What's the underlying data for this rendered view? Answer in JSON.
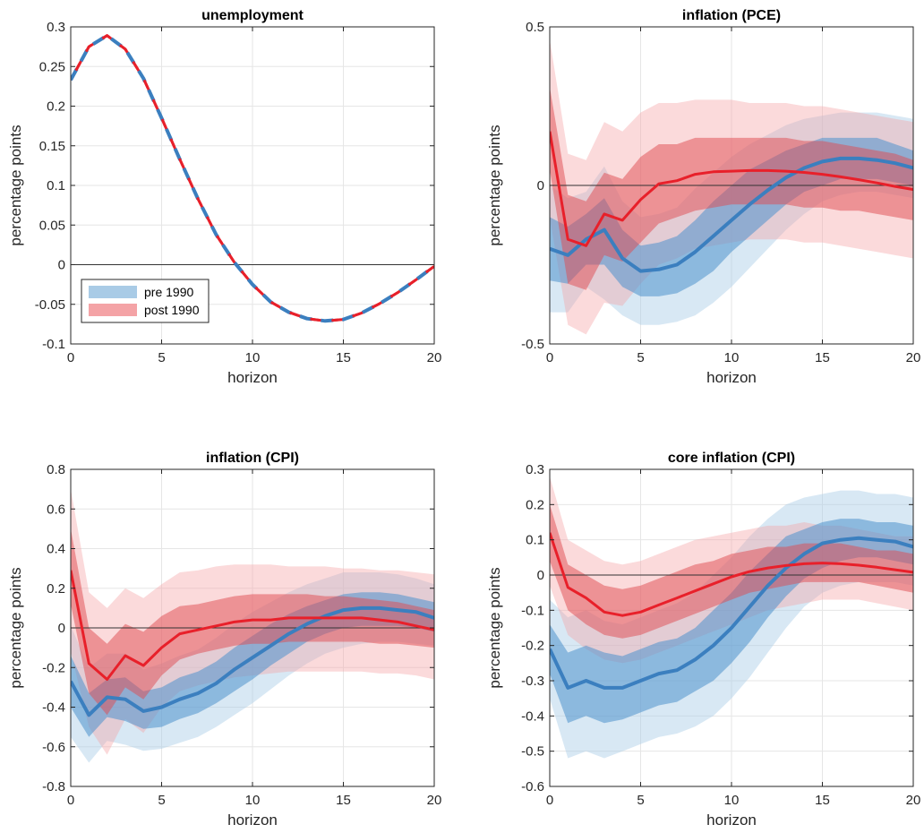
{
  "colors": {
    "pre": "#3b7fbf",
    "pre_band_inner": "#4f92cc",
    "pre_band_outer": "#a9cbe6",
    "post": "#e8202a",
    "post_band_inner": "#e04a50",
    "post_band_outer": "#f4a3a6",
    "grid": "#e6e6e6",
    "axis": "#262626"
  },
  "legend": {
    "pre_label": "pre 1990",
    "post_label": "post 1990"
  },
  "chart_data": [
    {
      "type": "line",
      "title": "unemployment",
      "xlabel": "horizon",
      "ylabel": "percentage points",
      "xlim": [
        0,
        20
      ],
      "ylim": [
        -0.1,
        0.3
      ],
      "xticks": [
        0,
        5,
        10,
        15,
        20
      ],
      "yticks": [
        -0.1,
        -0.05,
        0,
        0.05,
        0.1,
        0.15,
        0.2,
        0.25,
        0.3
      ],
      "ytick_labels": [
        "-0.1",
        "-0.05",
        "0",
        "0.05",
        "0.1",
        "0.15",
        "0.2",
        "0.25",
        "0.3"
      ],
      "xtick_labels": [
        "0",
        "5",
        "10",
        "15",
        "20"
      ],
      "grid": true,
      "legend_position": "bottom-left",
      "x": [
        0,
        1,
        2,
        3,
        4,
        5,
        6,
        7,
        8,
        9,
        10,
        11,
        12,
        13,
        14,
        15,
        16,
        17,
        18,
        19,
        20
      ],
      "series": [
        {
          "name": "pre 1990",
          "style": "dashed",
          "values": [
            0.233,
            0.275,
            0.289,
            0.272,
            0.235,
            0.185,
            0.133,
            0.083,
            0.038,
            0.003,
            -0.025,
            -0.047,
            -0.06,
            -0.068,
            -0.071,
            -0.069,
            -0.061,
            -0.049,
            -0.035,
            -0.019,
            -0.002
          ]
        },
        {
          "name": "post 1990",
          "style": "dashed",
          "values": [
            0.233,
            0.275,
            0.289,
            0.272,
            0.235,
            0.185,
            0.133,
            0.083,
            0.038,
            0.003,
            -0.025,
            -0.047,
            -0.06,
            -0.068,
            -0.071,
            -0.069,
            -0.061,
            -0.049,
            -0.035,
            -0.019,
            -0.002
          ]
        }
      ],
      "bands": []
    },
    {
      "type": "line",
      "title": "inflation (PCE)",
      "xlabel": "horizon",
      "ylabel": "percentage points",
      "xlim": [
        0,
        20
      ],
      "ylim": [
        -0.5,
        0.5
      ],
      "xticks": [
        0,
        5,
        10,
        15,
        20
      ],
      "yticks": [
        -0.5,
        0,
        0.5
      ],
      "ytick_labels": [
        "-0.5",
        "0",
        "0.5"
      ],
      "xtick_labels": [
        "0",
        "5",
        "10",
        "15",
        "20"
      ],
      "grid": true,
      "x": [
        0,
        1,
        2,
        3,
        4,
        5,
        6,
        7,
        8,
        9,
        10,
        11,
        12,
        13,
        14,
        15,
        16,
        17,
        18,
        19,
        20
      ],
      "series": [
        {
          "name": "pre 1990",
          "values": [
            -0.2,
            -0.22,
            -0.17,
            -0.14,
            -0.23,
            -0.27,
            -0.265,
            -0.25,
            -0.21,
            -0.16,
            -0.11,
            -0.06,
            -0.015,
            0.025,
            0.055,
            0.075,
            0.085,
            0.085,
            0.08,
            0.07,
            0.055
          ]
        },
        {
          "name": "post 1990",
          "values": [
            0.17,
            -0.17,
            -0.19,
            -0.09,
            -0.11,
            -0.045,
            0.005,
            0.015,
            0.035,
            0.043,
            0.045,
            0.047,
            0.047,
            0.045,
            0.041,
            0.035,
            0.027,
            0.018,
            0.008,
            -0.003,
            -0.013
          ]
        }
      ],
      "bands": [
        {
          "series": "pre 1990",
          "level": "outer",
          "lower": [
            -0.4,
            -0.4,
            -0.32,
            -0.36,
            -0.41,
            -0.44,
            -0.44,
            -0.43,
            -0.41,
            -0.37,
            -0.32,
            -0.26,
            -0.2,
            -0.14,
            -0.09,
            -0.05,
            -0.03,
            -0.02,
            -0.02,
            -0.03,
            -0.04
          ],
          "upper": [
            0.0,
            -0.04,
            -0.02,
            0.06,
            -0.05,
            -0.1,
            -0.09,
            -0.07,
            -0.01,
            0.04,
            0.09,
            0.13,
            0.16,
            0.19,
            0.21,
            0.22,
            0.23,
            0.23,
            0.23,
            0.22,
            0.21
          ]
        },
        {
          "series": "pre 1990",
          "level": "inner",
          "lower": [
            -0.3,
            -0.31,
            -0.25,
            -0.25,
            -0.32,
            -0.35,
            -0.35,
            -0.34,
            -0.31,
            -0.27,
            -0.21,
            -0.16,
            -0.11,
            -0.06,
            -0.02,
            0.0,
            0.02,
            0.02,
            0.02,
            0.01,
            0.0
          ],
          "upper": [
            -0.1,
            -0.13,
            -0.09,
            -0.04,
            -0.14,
            -0.19,
            -0.18,
            -0.16,
            -0.11,
            -0.05,
            0.0,
            0.05,
            0.08,
            0.11,
            0.13,
            0.15,
            0.15,
            0.15,
            0.15,
            0.13,
            0.11
          ]
        },
        {
          "series": "post 1990",
          "level": "outer",
          "lower": [
            -0.1,
            -0.44,
            -0.47,
            -0.37,
            -0.38,
            -0.31,
            -0.25,
            -0.23,
            -0.2,
            -0.19,
            -0.18,
            -0.17,
            -0.17,
            -0.17,
            -0.18,
            -0.18,
            -0.19,
            -0.2,
            -0.21,
            -0.22,
            -0.23
          ],
          "upper": [
            0.46,
            0.1,
            0.08,
            0.2,
            0.17,
            0.23,
            0.26,
            0.26,
            0.27,
            0.27,
            0.27,
            0.26,
            0.26,
            0.26,
            0.25,
            0.25,
            0.24,
            0.23,
            0.22,
            0.21,
            0.2
          ]
        },
        {
          "series": "post 1990",
          "level": "inner",
          "lower": [
            0.05,
            -0.31,
            -0.33,
            -0.22,
            -0.24,
            -0.18,
            -0.12,
            -0.1,
            -0.08,
            -0.07,
            -0.06,
            -0.06,
            -0.06,
            -0.06,
            -0.07,
            -0.07,
            -0.08,
            -0.08,
            -0.09,
            -0.1,
            -0.11
          ],
          "upper": [
            0.31,
            -0.03,
            -0.05,
            0.04,
            0.02,
            0.09,
            0.13,
            0.13,
            0.15,
            0.15,
            0.15,
            0.15,
            0.15,
            0.15,
            0.14,
            0.14,
            0.13,
            0.12,
            0.11,
            0.1,
            0.08
          ]
        }
      ]
    },
    {
      "type": "line",
      "title": "inflation (CPI)",
      "xlabel": "horizon",
      "ylabel": "percentage points",
      "xlim": [
        0,
        20
      ],
      "ylim": [
        -0.8,
        0.8
      ],
      "xticks": [
        0,
        5,
        10,
        15,
        20
      ],
      "yticks": [
        -0.8,
        -0.6,
        -0.4,
        -0.2,
        0,
        0.2,
        0.4,
        0.6,
        0.8
      ],
      "ytick_labels": [
        "-0.8",
        "-0.6",
        "-0.4",
        "-0.2",
        "0",
        "0.2",
        "0.4",
        "0.6",
        "0.8"
      ],
      "xtick_labels": [
        "0",
        "5",
        "10",
        "15",
        "20"
      ],
      "grid": true,
      "x": [
        0,
        1,
        2,
        3,
        4,
        5,
        6,
        7,
        8,
        9,
        10,
        11,
        12,
        13,
        14,
        15,
        16,
        17,
        18,
        19,
        20
      ],
      "series": [
        {
          "name": "pre 1990",
          "values": [
            -0.27,
            -0.44,
            -0.35,
            -0.36,
            -0.42,
            -0.4,
            -0.36,
            -0.33,
            -0.28,
            -0.21,
            -0.15,
            -0.09,
            -0.03,
            0.02,
            0.06,
            0.09,
            0.1,
            0.1,
            0.09,
            0.08,
            0.05
          ]
        },
        {
          "name": "post 1990",
          "values": [
            0.29,
            -0.18,
            -0.26,
            -0.14,
            -0.19,
            -0.1,
            -0.03,
            -0.01,
            0.01,
            0.03,
            0.04,
            0.04,
            0.05,
            0.05,
            0.05,
            0.05,
            0.05,
            0.04,
            0.03,
            0.01,
            -0.01
          ]
        }
      ],
      "bands": [
        {
          "series": "pre 1990",
          "level": "outer",
          "lower": [
            -0.55,
            -0.68,
            -0.57,
            -0.59,
            -0.62,
            -0.61,
            -0.58,
            -0.55,
            -0.5,
            -0.44,
            -0.38,
            -0.31,
            -0.24,
            -0.18,
            -0.13,
            -0.1,
            -0.08,
            -0.07,
            -0.07,
            -0.08,
            -0.09
          ],
          "upper": [
            0.01,
            -0.2,
            -0.13,
            -0.13,
            -0.21,
            -0.18,
            -0.14,
            -0.11,
            -0.05,
            0.02,
            0.08,
            0.13,
            0.18,
            0.22,
            0.25,
            0.28,
            0.28,
            0.28,
            0.27,
            0.25,
            0.22
          ]
        },
        {
          "series": "pre 1990",
          "level": "inner",
          "lower": [
            -0.4,
            -0.55,
            -0.45,
            -0.47,
            -0.51,
            -0.5,
            -0.46,
            -0.43,
            -0.38,
            -0.32,
            -0.26,
            -0.19,
            -0.13,
            -0.07,
            -0.03,
            0.0,
            0.01,
            0.01,
            0.01,
            0.0,
            -0.02
          ],
          "upper": [
            -0.14,
            -0.33,
            -0.26,
            -0.25,
            -0.32,
            -0.3,
            -0.25,
            -0.22,
            -0.17,
            -0.1,
            -0.04,
            0.02,
            0.07,
            0.11,
            0.14,
            0.17,
            0.18,
            0.18,
            0.17,
            0.15,
            0.13
          ]
        },
        {
          "series": "post 1990",
          "level": "outer",
          "lower": [
            -0.12,
            -0.5,
            -0.64,
            -0.46,
            -0.53,
            -0.4,
            -0.32,
            -0.29,
            -0.27,
            -0.25,
            -0.24,
            -0.23,
            -0.22,
            -0.22,
            -0.22,
            -0.22,
            -0.22,
            -0.23,
            -0.23,
            -0.24,
            -0.26
          ],
          "upper": [
            0.7,
            0.18,
            0.1,
            0.2,
            0.15,
            0.22,
            0.28,
            0.29,
            0.31,
            0.32,
            0.32,
            0.32,
            0.31,
            0.31,
            0.31,
            0.3,
            0.3,
            0.29,
            0.29,
            0.28,
            0.27
          ]
        },
        {
          "series": "post 1990",
          "level": "inner",
          "lower": [
            0.12,
            -0.33,
            -0.44,
            -0.3,
            -0.36,
            -0.24,
            -0.16,
            -0.13,
            -0.11,
            -0.09,
            -0.08,
            -0.08,
            -0.07,
            -0.07,
            -0.07,
            -0.07,
            -0.07,
            -0.08,
            -0.08,
            -0.09,
            -0.1
          ],
          "upper": [
            0.5,
            0.0,
            -0.08,
            0.02,
            -0.02,
            0.06,
            0.11,
            0.12,
            0.14,
            0.16,
            0.17,
            0.17,
            0.17,
            0.17,
            0.16,
            0.16,
            0.15,
            0.14,
            0.13,
            0.11,
            0.09
          ]
        }
      ]
    },
    {
      "type": "line",
      "title": "core inflation (CPI)",
      "xlabel": "horizon",
      "ylabel": "percentage points",
      "xlim": [
        0,
        20
      ],
      "ylim": [
        -0.6,
        0.3
      ],
      "xticks": [
        0,
        5,
        10,
        15,
        20
      ],
      "yticks": [
        -0.6,
        -0.5,
        -0.4,
        -0.3,
        -0.2,
        -0.1,
        0,
        0.1,
        0.2,
        0.3
      ],
      "ytick_labels": [
        "-0.6",
        "-0.5",
        "-0.4",
        "-0.3",
        "-0.2",
        "-0.1",
        "0",
        "0.1",
        "0.2",
        "0.3"
      ],
      "xtick_labels": [
        "0",
        "5",
        "10",
        "15",
        "20"
      ],
      "grid": true,
      "x": [
        0,
        1,
        2,
        3,
        4,
        5,
        6,
        7,
        8,
        9,
        10,
        11,
        12,
        13,
        14,
        15,
        16,
        17,
        18,
        19,
        20
      ],
      "series": [
        {
          "name": "pre 1990",
          "values": [
            -0.21,
            -0.32,
            -0.3,
            -0.32,
            -0.32,
            -0.3,
            -0.28,
            -0.27,
            -0.24,
            -0.2,
            -0.15,
            -0.09,
            -0.03,
            0.02,
            0.06,
            0.09,
            0.1,
            0.105,
            0.1,
            0.095,
            0.08
          ]
        },
        {
          "name": "post 1990",
          "values": [
            0.12,
            -0.035,
            -0.065,
            -0.105,
            -0.115,
            -0.105,
            -0.085,
            -0.065,
            -0.045,
            -0.025,
            -0.005,
            0.01,
            0.02,
            0.027,
            0.032,
            0.034,
            0.032,
            0.028,
            0.022,
            0.015,
            0.008
          ]
        }
      ],
      "bands": [
        {
          "series": "pre 1990",
          "level": "outer",
          "lower": [
            -0.35,
            -0.52,
            -0.5,
            -0.52,
            -0.5,
            -0.48,
            -0.46,
            -0.45,
            -0.43,
            -0.4,
            -0.35,
            -0.29,
            -0.22,
            -0.15,
            -0.09,
            -0.05,
            -0.03,
            -0.02,
            -0.02,
            -0.02,
            -0.03
          ],
          "upper": [
            -0.07,
            -0.12,
            -0.1,
            -0.13,
            -0.14,
            -0.12,
            -0.1,
            -0.08,
            -0.05,
            0.0,
            0.05,
            0.11,
            0.16,
            0.2,
            0.22,
            0.23,
            0.24,
            0.24,
            0.23,
            0.23,
            0.22
          ]
        },
        {
          "series": "pre 1990",
          "level": "inner",
          "lower": [
            -0.28,
            -0.42,
            -0.4,
            -0.42,
            -0.41,
            -0.39,
            -0.37,
            -0.36,
            -0.33,
            -0.3,
            -0.25,
            -0.19,
            -0.12,
            -0.06,
            -0.01,
            0.02,
            0.04,
            0.05,
            0.05,
            0.04,
            0.03
          ],
          "upper": [
            -0.14,
            -0.22,
            -0.2,
            -0.22,
            -0.23,
            -0.21,
            -0.19,
            -0.18,
            -0.15,
            -0.1,
            -0.05,
            0.01,
            0.06,
            0.11,
            0.13,
            0.15,
            0.16,
            0.16,
            0.15,
            0.15,
            0.14
          ]
        },
        {
          "series": "post 1990",
          "level": "outer",
          "lower": [
            -0.03,
            -0.17,
            -0.21,
            -0.24,
            -0.25,
            -0.24,
            -0.22,
            -0.2,
            -0.18,
            -0.16,
            -0.14,
            -0.12,
            -0.1,
            -0.09,
            -0.08,
            -0.07,
            -0.07,
            -0.07,
            -0.08,
            -0.09,
            -0.1
          ],
          "upper": [
            0.28,
            0.1,
            0.07,
            0.04,
            0.03,
            0.04,
            0.06,
            0.08,
            0.1,
            0.11,
            0.12,
            0.13,
            0.14,
            0.14,
            0.15,
            0.14,
            0.14,
            0.13,
            0.12,
            0.11,
            0.11
          ]
        },
        {
          "series": "post 1990",
          "level": "inner",
          "lower": [
            0.04,
            -0.1,
            -0.14,
            -0.17,
            -0.18,
            -0.17,
            -0.15,
            -0.13,
            -0.11,
            -0.09,
            -0.07,
            -0.05,
            -0.04,
            -0.03,
            -0.02,
            -0.02,
            -0.02,
            -0.02,
            -0.03,
            -0.04,
            -0.05
          ],
          "upper": [
            0.2,
            0.03,
            0.0,
            -0.03,
            -0.04,
            -0.03,
            -0.01,
            0.01,
            0.03,
            0.04,
            0.06,
            0.07,
            0.08,
            0.08,
            0.09,
            0.09,
            0.09,
            0.08,
            0.07,
            0.07,
            0.06
          ]
        }
      ]
    }
  ]
}
